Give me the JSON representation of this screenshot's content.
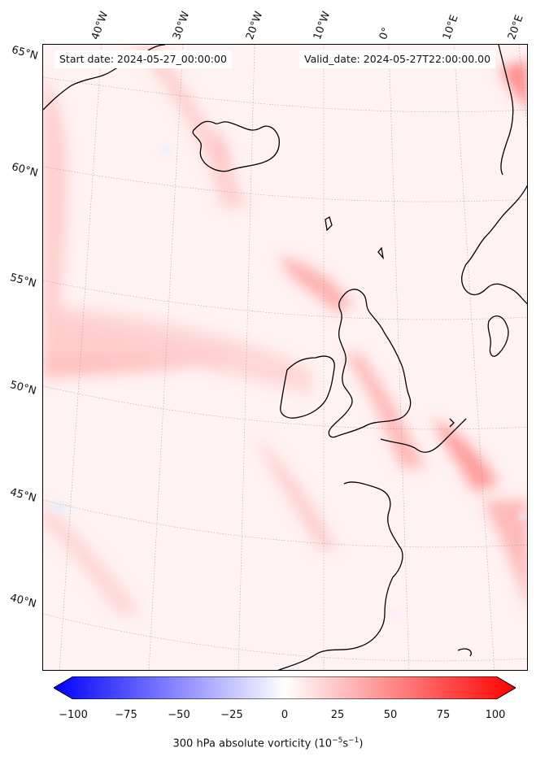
{
  "header": {
    "start_date": "Start date: 2024-05-27_00:00:00",
    "valid_date": "Valid_date: 2024-05-27T22:00:00.00"
  },
  "map": {
    "longitude_labels": [
      "40°W",
      "30°W",
      "20°W",
      "10°W",
      "0°",
      "10°E",
      "20°E"
    ],
    "latitude_labels": [
      "65°N",
      "60°N",
      "55°N",
      "50°N",
      "45°N",
      "40°N"
    ],
    "regions_shown": [
      "Greenland",
      "Iceland",
      "Ireland",
      "Great Britain",
      "France",
      "Iberia",
      "Scandinavia",
      "Denmark"
    ]
  },
  "colorbar": {
    "ticks": [
      "−100",
      "−75",
      "−50",
      "−25",
      "0",
      "25",
      "50",
      "75",
      "100"
    ],
    "label_main": "300 hPa absolute vorticity (10",
    "label_sup1": "−5",
    "label_mid": "s",
    "label_sup2": "−1",
    "label_end": ")",
    "colormap": "bwr",
    "min_color": "#0000ff",
    "mid_color": "#ffffff",
    "max_color": "#ff0000"
  }
}
